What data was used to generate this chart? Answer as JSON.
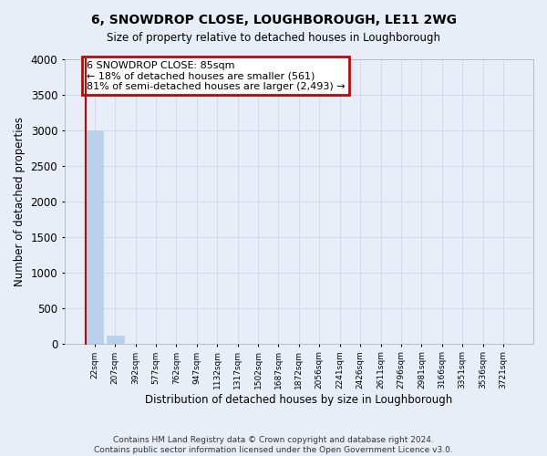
{
  "title": "6, SNOWDROP CLOSE, LOUGHBOROUGH, LE11 2WG",
  "subtitle": "Size of property relative to detached houses in Loughborough",
  "xlabel": "Distribution of detached houses by size in Loughborough",
  "ylabel": "Number of detached properties",
  "footer_line1": "Contains HM Land Registry data © Crown copyright and database right 2024.",
  "footer_line2": "Contains public sector information licensed under the Open Government Licence v3.0.",
  "categories": [
    "22sqm",
    "207sqm",
    "392sqm",
    "577sqm",
    "762sqm",
    "947sqm",
    "1132sqm",
    "1317sqm",
    "1502sqm",
    "1687sqm",
    "1872sqm",
    "2056sqm",
    "2241sqm",
    "2426sqm",
    "2611sqm",
    "2796sqm",
    "2981sqm",
    "3166sqm",
    "3351sqm",
    "3536sqm",
    "3721sqm"
  ],
  "values": [
    3000,
    115,
    0,
    0,
    0,
    0,
    0,
    0,
    0,
    0,
    0,
    0,
    0,
    0,
    0,
    0,
    0,
    0,
    0,
    0,
    0
  ],
  "bar_color": "#b8d0ea",
  "bar_edge_color": "#b8d0ea",
  "grid_color": "#cfdaec",
  "bg_color": "#e8eef8",
  "annotation_line1": "6 SNOWDROP CLOSE: 85sqm",
  "annotation_line2": "← 18% of detached houses are smaller (561)",
  "annotation_line3": "81% of semi-detached houses are larger (2,493) →",
  "annotation_box_color": "#ffffff",
  "annotation_border_color": "#cc0000",
  "property_line_color": "#cc0000",
  "property_line_x": -0.45,
  "ylim": [
    0,
    4000
  ],
  "yticks": [
    0,
    500,
    1000,
    1500,
    2000,
    2500,
    3000,
    3500,
    4000
  ]
}
